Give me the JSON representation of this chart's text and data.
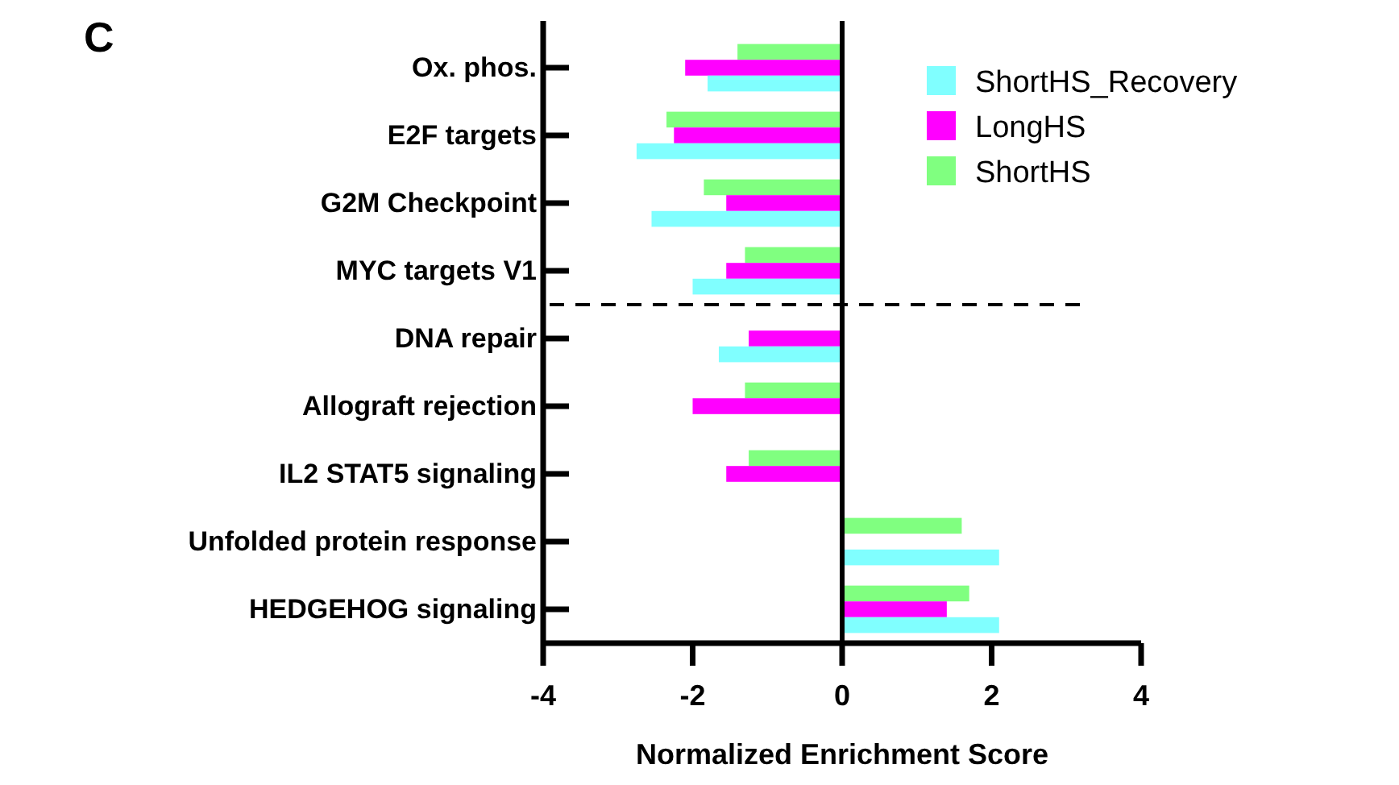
{
  "chart_data": {
    "type": "bar",
    "orientation": "horizontal",
    "xlabel": "Normalized Enrichment Score",
    "annotations": [
      "C"
    ],
    "categories": [
      "Ox. phos.",
      "E2F targets",
      "G2M Checkpoint",
      "MYC targets V1",
      "DNA repair",
      "Allograft rejection",
      "IL2 STAT5 signaling",
      "Unfolded protein response",
      "HEDGEHOG signaling"
    ],
    "series": [
      {
        "name": "ShortHS",
        "color": "#80ff80",
        "values": [
          -1.4,
          -2.35,
          -1.85,
          -1.3,
          null,
          -1.3,
          -1.25,
          1.6,
          1.7
        ]
      },
      {
        "name": "LongHS",
        "color": "#ff00ff",
        "values": [
          -2.1,
          -2.25,
          -1.55,
          -1.55,
          -1.25,
          -2.0,
          -1.55,
          null,
          1.4
        ]
      },
      {
        "name": "ShortHS_Recovery",
        "color": "#80ffff",
        "values": [
          -1.8,
          -2.75,
          -2.55,
          -2.0,
          -1.65,
          null,
          null,
          2.1,
          2.1
        ]
      }
    ],
    "xlim": [
      -4,
      4
    ],
    "xticks": [
      -4,
      -2,
      0,
      2,
      4
    ],
    "grid": false,
    "legend": "top right",
    "ref_lines": [
      {
        "axis": "x",
        "value": 0,
        "color": "#000000"
      }
    ]
  }
}
